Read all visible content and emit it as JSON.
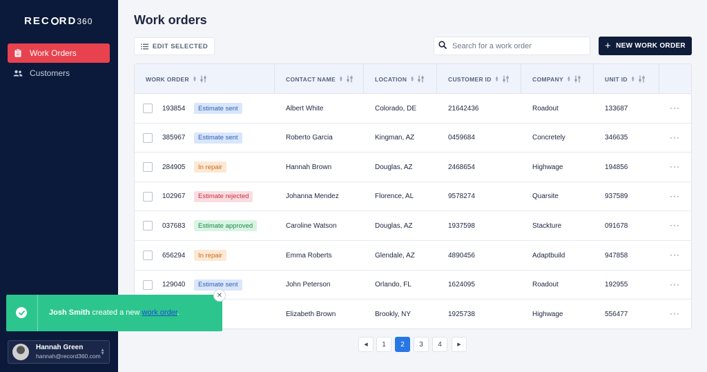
{
  "sidebar": {
    "logo": {
      "record": "REC",
      "rd": "RD",
      "num": "360"
    },
    "items": [
      {
        "label": "Work Orders",
        "icon": "clipboard-icon",
        "active": true
      },
      {
        "label": "Customers",
        "icon": "users-icon",
        "active": false
      }
    ],
    "user": {
      "name": "Hannah Green",
      "email": "hannah@record360.com"
    }
  },
  "header": {
    "title": "Work orders",
    "edit_label": "EDIT SELECTED",
    "search_placeholder": "Search for a work order",
    "new_label": "NEW WORK ORDER"
  },
  "table": {
    "columns": [
      "WORK ORDER",
      "CONTACT NAME",
      "LOCATION",
      "CUSTOMER ID",
      "COMPANY",
      "UNIT ID"
    ],
    "rows": [
      {
        "id": "193854",
        "status": "Estimate sent",
        "contact": "Albert White",
        "location": "Colorado, DE",
        "customer_id": "21642436",
        "company": "Roadout",
        "unit_id": "133687"
      },
      {
        "id": "385967",
        "status": "Estimate sent",
        "contact": "Roberto Garcia",
        "location": "Kingman, AZ",
        "customer_id": "0459684",
        "company": "Concretely",
        "unit_id": "346635"
      },
      {
        "id": "284905",
        "status": "In repair",
        "contact": "Hannah Brown",
        "location": "Douglas, AZ",
        "customer_id": "2468654",
        "company": "Highwage",
        "unit_id": "194856"
      },
      {
        "id": "102967",
        "status": "Estimate rejected",
        "contact": "Johanna Mendez",
        "location": "Florence, AL",
        "customer_id": "9578274",
        "company": "Quarsite",
        "unit_id": "937589"
      },
      {
        "id": "037683",
        "status": "Estimate approved",
        "contact": "Caroline Watson",
        "location": "Douglas, AZ",
        "customer_id": "1937598",
        "company": "Stackture",
        "unit_id": "091678"
      },
      {
        "id": "656294",
        "status": "In repair",
        "contact": "Emma Roberts",
        "location": "Glendale, AZ",
        "customer_id": "4890456",
        "company": "Adaptbuild",
        "unit_id": "947858"
      },
      {
        "id": "129040",
        "status": "Estimate sent",
        "contact": "John Peterson",
        "location": "Orlando, FL",
        "customer_id": "1624095",
        "company": "Roadout",
        "unit_id": "192955"
      },
      {
        "id": "",
        "status": "",
        "contact": "Elizabeth Brown",
        "location": "Brookly, NY",
        "customer_id": "1925738",
        "company": "Highwage",
        "unit_id": "556477"
      }
    ],
    "more_label": "···"
  },
  "toast": {
    "actor": "Josh Smith",
    "text": " created a new ",
    "link": "work order",
    "end": ".",
    "close": "✕"
  },
  "pagination": {
    "prev": "◀",
    "pages": [
      "1",
      "2",
      "3",
      "4"
    ],
    "current": "2",
    "next": "▶"
  },
  "colors": {
    "sidebar_bg": "#0b1a3a",
    "accent": "#e8424f",
    "primary_button": "#0f1c3a",
    "toast": "#2dc58e",
    "pager_active": "#2877e4"
  }
}
